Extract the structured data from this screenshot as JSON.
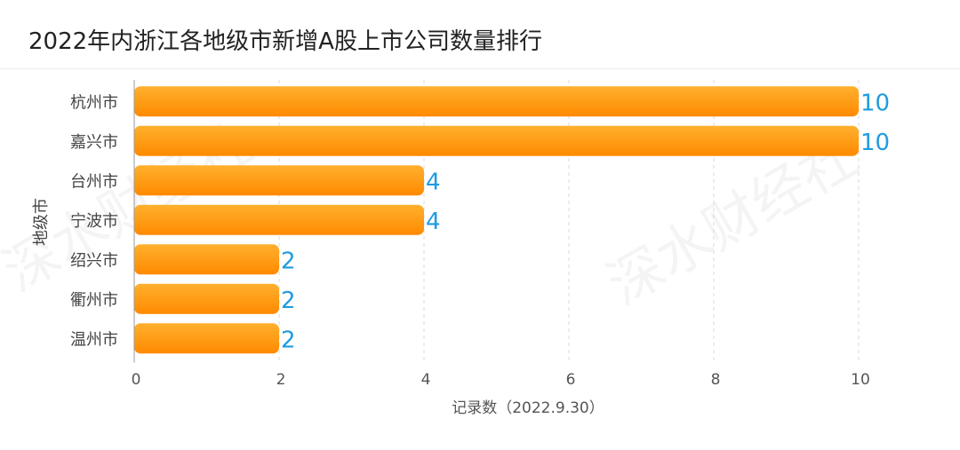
{
  "header": {
    "title": "2022年内浙江各地级市新增A股上市公司数量排行"
  },
  "watermark": {
    "text": "深水财经社"
  },
  "colors": {
    "bar_start": "#FF8A00",
    "bar_end": "#FFB02E",
    "value_label": "#1E9BE0",
    "grid": "#d8d8d8",
    "tick": "#555555"
  },
  "chart_data": {
    "type": "bar",
    "orientation": "horizontal",
    "title": "2022年内浙江各地级市新增A股上市公司数量排行",
    "xlabel": "记录数（2022.9.30）",
    "ylabel": "地级市",
    "categories": [
      "杭州市",
      "嘉兴市",
      "台州市",
      "宁波市",
      "绍兴市",
      "衢州市",
      "温州市"
    ],
    "values": [
      10,
      10,
      4,
      4,
      2,
      2,
      2
    ],
    "xlim": [
      0,
      10
    ],
    "xticks": [
      "0",
      "2",
      "4",
      "6",
      "8",
      "10"
    ],
    "grid": "vertical dashed"
  }
}
